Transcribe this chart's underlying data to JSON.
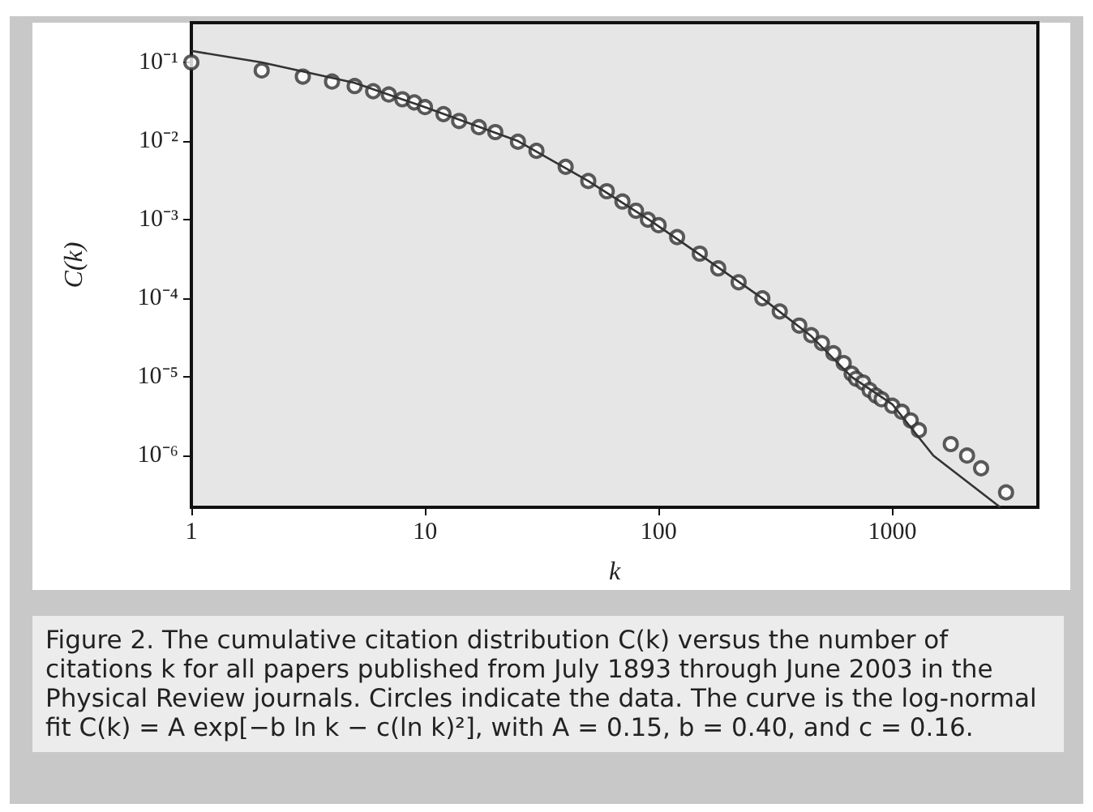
{
  "chart_data": {
    "type": "scatter",
    "xlabel": "k",
    "ylabel": "C(k)",
    "log": "xy",
    "grid": false,
    "xlim": [
      1,
      4200
    ],
    "xticks": [
      1,
      10,
      100,
      1000
    ],
    "ylim": [
      2.2e-07,
      0.32
    ],
    "yticks": [
      {
        "value": 0.1,
        "label": "10⁻¹"
      },
      {
        "value": 0.01,
        "label": "10⁻²"
      },
      {
        "value": 0.001,
        "label": "10⁻³"
      },
      {
        "value": 0.0001,
        "label": "10⁻⁴"
      },
      {
        "value": 1e-05,
        "label": "10⁻⁵"
      },
      {
        "value": 1e-06,
        "label": "10⁻⁶"
      }
    ],
    "series": [
      {
        "marker": "circle",
        "color": "#333333",
        "x": [
          1,
          2,
          3,
          4,
          5,
          6,
          7,
          8,
          9,
          10,
          12,
          14,
          17,
          20,
          25,
          30,
          40,
          50,
          60,
          70,
          80,
          90,
          100,
          120,
          150,
          180,
          220,
          278,
          330,
          400,
          450,
          500,
          560,
          620,
          670,
          700,
          750,
          800,
          850,
          900,
          1000,
          1100,
          1200,
          1300,
          1780,
          2090,
          2400,
          3070
        ],
        "values": [
          0.1,
          0.079,
          0.066,
          0.057,
          0.05,
          0.043,
          0.039,
          0.034,
          0.031,
          0.027,
          0.022,
          0.018,
          0.015,
          0.013,
          0.0098,
          0.0075,
          0.0047,
          0.0031,
          0.0023,
          0.0017,
          0.0013,
          0.001,
          0.00085,
          0.0006,
          0.00037,
          0.00024,
          0.00016,
          0.0001,
          6.8e-05,
          4.5e-05,
          3.4e-05,
          2.7e-05,
          2e-05,
          1.5e-05,
          1.1e-05,
          9.5e-06,
          8.5e-06,
          6.8e-06,
          5.8e-06,
          5.2e-06,
          4.3e-06,
          3.6e-06,
          2.8e-06,
          2.1e-06,
          1.4e-06,
          1e-06,
          6.9e-07,
          3.4e-07
        ]
      },
      {
        "type": "line",
        "marker": "none",
        "line_style": "solid",
        "color": "#333333",
        "x": [
          1,
          2,
          5,
          10,
          25,
          50,
          91,
          150,
          278,
          450,
          670,
          1000,
          1500,
          2900
        ],
        "values": [
          0.14,
          0.1,
          0.055,
          0.027,
          0.01,
          0.0031,
          0.001,
          0.00036,
          0.0001,
          3.3e-05,
          1e-05,
          4.5e-06,
          1e-06,
          2.2e-07
        ]
      }
    ],
    "annotations": [
      "Figure 2. The cumulative citation distribution C(k) versus the number of citations k for all papers published from July 1893 through June 2003 in the Physical Review journals. Circles indicate the data. The curve is the log-normal fit C(k) = A exp[−b ln k − c(ln k)²], with A = 0.15, b = 0.40, and c = 0.16."
    ]
  }
}
